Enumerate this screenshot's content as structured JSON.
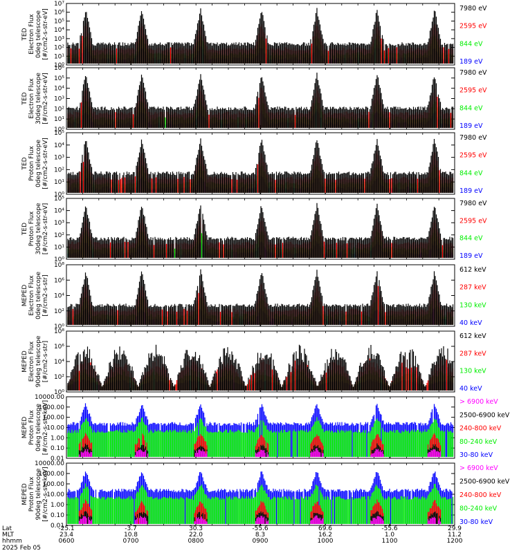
{
  "colors": {
    "blue": "#0000ff",
    "red": "#ff0000",
    "green": "#00ee00",
    "black": "#000000",
    "magenta": "#ff00ff"
  },
  "chart_data": [
    {
      "type": "line",
      "ylabel": [
        "TED",
        "Electron Flux",
        "0deg telescope",
        "[#/cm2-s-str-eV]"
      ],
      "yscale": "log",
      "yticks": [
        "10⁰",
        "10¹",
        "10²",
        "10³",
        "10⁴",
        "10⁵",
        "10⁶",
        "10⁷"
      ],
      "ylim": [
        1,
        10000000
      ],
      "series": [
        {
          "name": "7980 eV",
          "color": "black"
        },
        {
          "name": "2595 eV",
          "color": "red"
        },
        {
          "name": "844 eV",
          "color": "green"
        },
        {
          "name": "189 eV",
          "color": "blue"
        }
      ]
    },
    {
      "type": "line",
      "ylabel": [
        "TED",
        "Electron Flux",
        "30deg telescope",
        "[#/cm2-s-str-eV]"
      ],
      "yscale": "log",
      "yticks": [
        "10⁰",
        "10¹",
        "10²",
        "10³",
        "10⁴",
        "10⁵",
        "10⁶"
      ],
      "ylim": [
        1,
        1000000
      ],
      "series": [
        {
          "name": "7980 eV",
          "color": "black"
        },
        {
          "name": "2595 eV",
          "color": "red"
        },
        {
          "name": "844 eV",
          "color": "green"
        },
        {
          "name": "189 eV",
          "color": "blue"
        }
      ]
    },
    {
      "type": "line",
      "ylabel": [
        "TED",
        "Proton Flux",
        "0deg telescope",
        "[#/cm2-s-str-eV]"
      ],
      "yscale": "log",
      "yticks": [
        "10⁰",
        "10¹",
        "10²",
        "10³",
        "10⁴",
        "10⁵"
      ],
      "ylim": [
        1,
        100000
      ],
      "series": [
        {
          "name": "7980 eV",
          "color": "black"
        },
        {
          "name": "2595 eV",
          "color": "red"
        },
        {
          "name": "844 eV",
          "color": "green"
        },
        {
          "name": "189 eV",
          "color": "blue"
        }
      ]
    },
    {
      "type": "line",
      "ylabel": [
        "TED",
        "Proton Flux",
        "30deg telescope",
        "[#/cm2-s-str-eV]"
      ],
      "yscale": "log",
      "yticks": [
        "10⁰",
        "10¹",
        "10²",
        "10³",
        "10⁴",
        "10⁵"
      ],
      "ylim": [
        1,
        100000
      ],
      "series": [
        {
          "name": "7980 eV",
          "color": "black"
        },
        {
          "name": "2595 eV",
          "color": "red"
        },
        {
          "name": "844 eV",
          "color": "green"
        },
        {
          "name": "189 eV",
          "color": "blue"
        }
      ]
    },
    {
      "type": "line",
      "ylabel": [
        "MEPED",
        "Electron Flux",
        "0deg telescope",
        "[#/cm2-s-str]"
      ],
      "yscale": "log",
      "yticks": [
        "10⁰",
        "10²",
        "10⁴",
        "10⁶",
        "10⁸"
      ],
      "ylim": [
        1,
        100000000
      ],
      "series": [
        {
          "name": "612 keV",
          "color": "black"
        },
        {
          "name": "287 keV",
          "color": "red"
        },
        {
          "name": "130 keV",
          "color": "green"
        },
        {
          "name": "40 keV",
          "color": "blue"
        }
      ]
    },
    {
      "type": "line",
      "ylabel": [
        "MEPED",
        "Electron Flux",
        "90deg telescope",
        "[#/cm2-s-str]"
      ],
      "yscale": "log",
      "yticks": [
        "10⁰",
        "10²",
        "10⁴",
        "10⁶",
        "10⁸"
      ],
      "ylim": [
        1,
        100000000
      ],
      "series": [
        {
          "name": "612 keV",
          "color": "black"
        },
        {
          "name": "287 keV",
          "color": "red"
        },
        {
          "name": "130 keV",
          "color": "green"
        },
        {
          "name": "40 keV",
          "color": "blue"
        }
      ]
    },
    {
      "type": "line",
      "ylabel": [
        "MEPED",
        "Proton Flux",
        "0deg telescope",
        "[#/cm2-s-str-keV]"
      ],
      "yscale": "log",
      "yticks": [
        "0.01",
        "0.10",
        "1.00",
        "10.00",
        "100.00",
        "1000.00",
        "10000.00"
      ],
      "ylim": [
        0.01,
        10000
      ],
      "series": [
        {
          "name": "> 6900 keV",
          "color": "magenta"
        },
        {
          "name": "2500-6900 keV",
          "color": "black"
        },
        {
          "name": "240-800 keV",
          "color": "red"
        },
        {
          "name": "80-240 keV",
          "color": "green"
        },
        {
          "name": "30-80 keV",
          "color": "blue"
        }
      ]
    },
    {
      "type": "line",
      "ylabel": [
        "MEPED",
        "Proton Flux",
        "90deg telescope",
        "[#/cm2-s-str-keV]"
      ],
      "yscale": "log",
      "yticks": [
        "0.01",
        "0.10",
        "1.00",
        "10.00",
        "100.00",
        "1000.00",
        "10000.00"
      ],
      "ylim": [
        0.01,
        10000
      ],
      "series": [
        {
          "name": "> 6900 keV",
          "color": "magenta"
        },
        {
          "name": "2500-6900 keV",
          "color": "black"
        },
        {
          "name": "240-800 keV",
          "color": "red"
        },
        {
          "name": "80-240 keV",
          "color": "green"
        },
        {
          "name": "30-80 keV",
          "color": "blue"
        }
      ]
    }
  ],
  "x_axis": {
    "row_labels": [
      "Lat",
      "MLT",
      "hhmm",
      "2025 Feb 05"
    ],
    "ticks": [
      {
        "lat": "-25.1",
        "mlt": "23.4",
        "hhmm": "0600"
      },
      {
        "lat": "-3.7",
        "mlt": "10.8",
        "hhmm": "0700"
      },
      {
        "lat": "30.3",
        "mlt": "22.0",
        "hhmm": "0800"
      },
      {
        "lat": "-55.6",
        "mlt": "8.3",
        "hhmm": "0900"
      },
      {
        "lat": "69.6",
        "mlt": "16.2",
        "hhmm": "1000"
      },
      {
        "lat": "-55.6",
        "mlt": "1.0",
        "hhmm": "1100"
      },
      {
        "lat": "29.9",
        "mlt": "11.2",
        "hhmm": "1200"
      }
    ]
  }
}
